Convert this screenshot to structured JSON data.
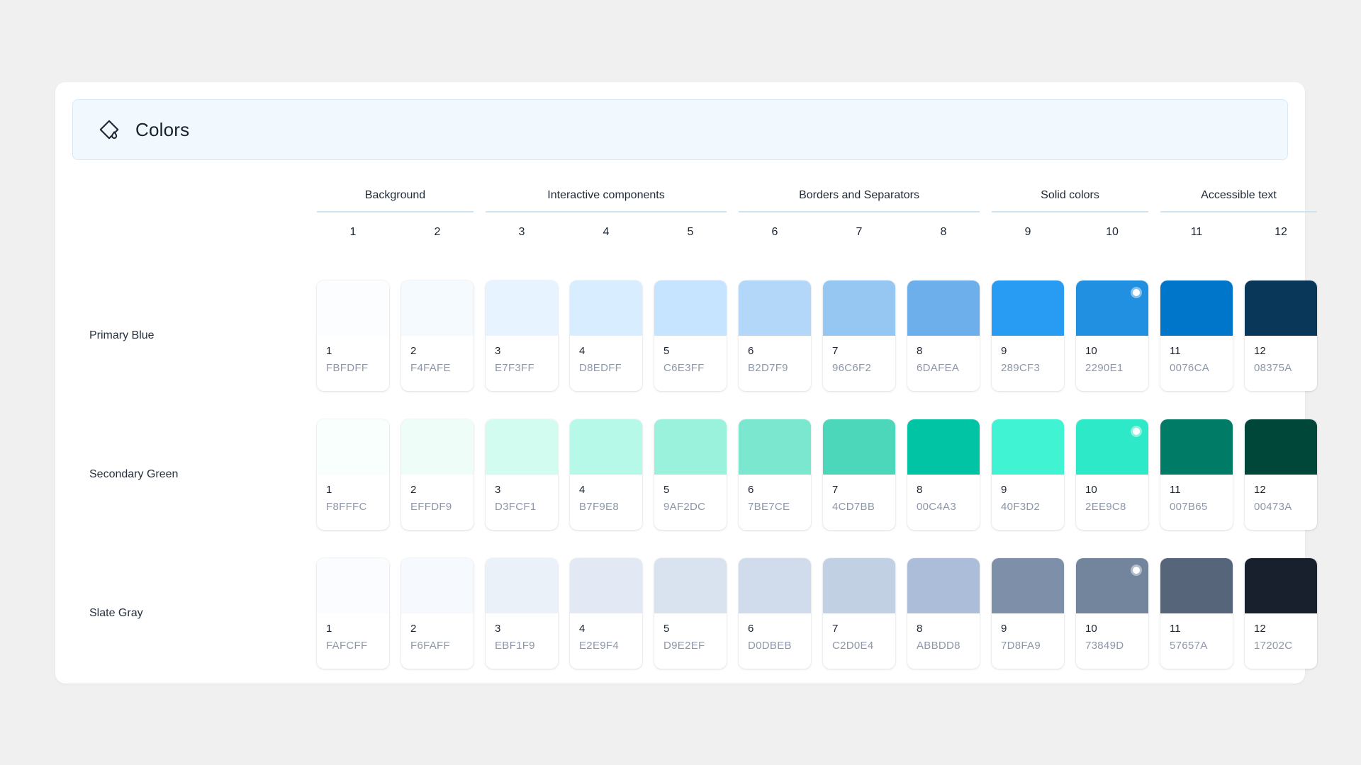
{
  "header": {
    "title": "Colors",
    "icon": "paint-bucket-icon"
  },
  "theme": {
    "page_bg": "#F0F0F0",
    "panel_bg": "#FFFFFF",
    "banner_bg": "#F2F9FE",
    "banner_border": "#D8EAF7",
    "group_underline": "#CFE4F2",
    "text_dark": "#1B2533",
    "text_muted": "#8D97A8"
  },
  "groups": [
    {
      "label": "Background",
      "columns": [
        "1",
        "2"
      ]
    },
    {
      "label": "Interactive components",
      "columns": [
        "3",
        "4",
        "5"
      ]
    },
    {
      "label": "Borders and Separators",
      "columns": [
        "6",
        "7",
        "8"
      ]
    },
    {
      "label": "Solid colors",
      "columns": [
        "9",
        "10"
      ]
    },
    {
      "label": "Accessible text",
      "columns": [
        "11",
        "12"
      ]
    }
  ],
  "rows": [
    {
      "label": "Primary Blue",
      "swatches": [
        {
          "n": "1",
          "hex": "FBFDFF"
        },
        {
          "n": "2",
          "hex": "F4FAFE"
        },
        {
          "n": "3",
          "hex": "E7F3FF"
        },
        {
          "n": "4",
          "hex": "D8EDFF"
        },
        {
          "n": "5",
          "hex": "C6E3FF"
        },
        {
          "n": "6",
          "hex": "B2D7F9"
        },
        {
          "n": "7",
          "hex": "96C6F2"
        },
        {
          "n": "8",
          "hex": "6DAFEA"
        },
        {
          "n": "9",
          "hex": "289CF3"
        },
        {
          "n": "10",
          "hex": "2290E1",
          "badge": true
        },
        {
          "n": "11",
          "hex": "0076CA"
        },
        {
          "n": "12",
          "hex": "08375A"
        }
      ]
    },
    {
      "label": "Secondary Green",
      "swatches": [
        {
          "n": "1",
          "hex": "F8FFFC"
        },
        {
          "n": "2",
          "hex": "EFFDF9"
        },
        {
          "n": "3",
          "hex": "D3FCF1"
        },
        {
          "n": "4",
          "hex": "B7F9E8"
        },
        {
          "n": "5",
          "hex": "9AF2DC"
        },
        {
          "n": "6",
          "hex": "7BE7CE"
        },
        {
          "n": "7",
          "hex": "4CD7BB"
        },
        {
          "n": "8",
          "hex": "00C4A3"
        },
        {
          "n": "9",
          "hex": "40F3D2",
          "texture": "light"
        },
        {
          "n": "10",
          "hex": "2EE9C8",
          "badge": true,
          "texture": "dark"
        },
        {
          "n": "11",
          "hex": "007B65"
        },
        {
          "n": "12",
          "hex": "00473A"
        }
      ]
    },
    {
      "label": "Slate Gray",
      "swatches": [
        {
          "n": "1",
          "hex": "FAFCFF"
        },
        {
          "n": "2",
          "hex": "F6FAFF"
        },
        {
          "n": "3",
          "hex": "EBF1F9"
        },
        {
          "n": "4",
          "hex": "E2E9F4"
        },
        {
          "n": "5",
          "hex": "D9E2EF"
        },
        {
          "n": "6",
          "hex": "D0DBEB",
          "texture": "fine"
        },
        {
          "n": "7",
          "hex": "C2D0E4"
        },
        {
          "n": "8",
          "hex": "ABBDD8"
        },
        {
          "n": "9",
          "hex": "7D8FA9",
          "texture": "lightblue"
        },
        {
          "n": "10",
          "hex": "73849D",
          "badge": true,
          "texture": "dark"
        },
        {
          "n": "11",
          "hex": "57657A"
        },
        {
          "n": "12",
          "hex": "17202C"
        }
      ]
    }
  ]
}
